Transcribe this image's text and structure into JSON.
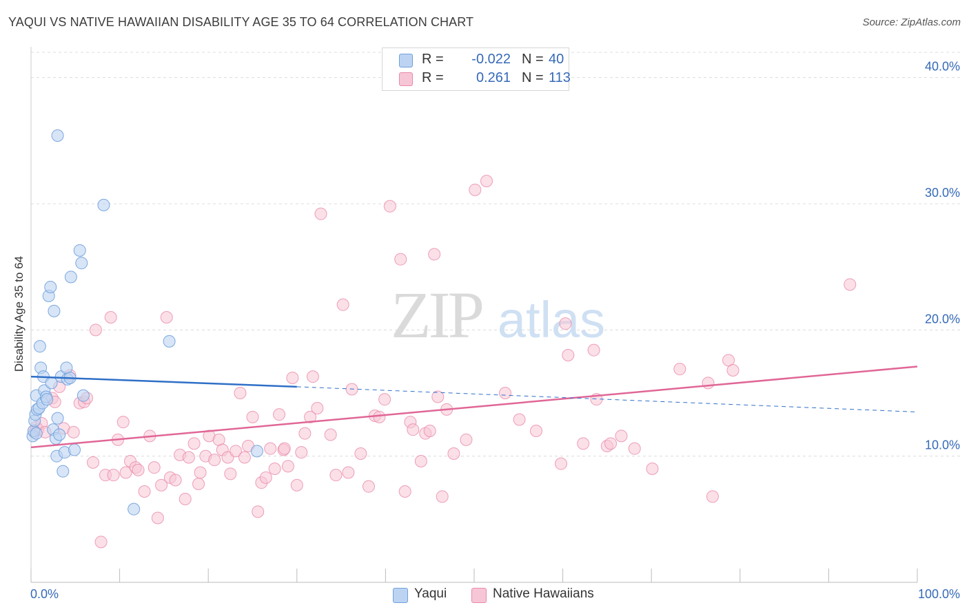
{
  "title": "YAQUI VS NATIVE HAWAIIAN DISABILITY AGE 35 TO 64 CORRELATION CHART",
  "source": "Source: ZipAtlas.com",
  "watermark": {
    "zip": "ZIP",
    "atlas": "atlas"
  },
  "legend": {
    "rows": [
      {
        "r_label": "R =",
        "r_value": "-0.022",
        "n_label": "N =",
        "n_value": "40"
      },
      {
        "r_label": "R =",
        "r_value": "0.261",
        "n_label": "N =",
        "n_value": "113"
      }
    ]
  },
  "bottom_legend": {
    "yaqui": "Yaqui",
    "hawaiian": "Native Hawaiians"
  },
  "colors": {
    "yaqui_fill": "#bcd4f2",
    "yaqui_stroke": "#6f9fdb",
    "yaqui_line": "#2e6fc7",
    "hawaiian_fill": "#f7c6d6",
    "hawaiian_stroke": "#e888a8",
    "hawaiian_line": "#e06696",
    "axis_text": "#3569b8",
    "grid": "#dcdcdc"
  },
  "chart_data": {
    "type": "scatter",
    "title": "YAQUI VS NATIVE HAWAIIAN DISABILITY AGE 35 TO 64 CORRELATION CHART",
    "xlabel": "",
    "ylabel": "Disability Age 35 to 64",
    "xlim": [
      0,
      100
    ],
    "ylim": [
      0,
      42
    ],
    "x_tick_labels": [
      "0.0%",
      "100.0%"
    ],
    "y_ticks": [
      10,
      20,
      30,
      40
    ],
    "y_tick_labels": [
      "10.0%",
      "20.0%",
      "30.0%",
      "40.0%"
    ],
    "series": [
      {
        "name": "Yaqui",
        "r": -0.022,
        "n": 40,
        "trend": {
          "x": [
            0,
            30
          ],
          "y": [
            16.3,
            15.5
          ],
          "dashed_to": [
            100,
            13.5
          ]
        },
        "points": [
          [
            0.2,
            11.6
          ],
          [
            0.3,
            12.0
          ],
          [
            0.4,
            12.8
          ],
          [
            0.5,
            13.3
          ],
          [
            0.6,
            14.8
          ],
          [
            0.7,
            13.7
          ],
          [
            0.9,
            13.8
          ],
          [
            1.0,
            18.7
          ],
          [
            1.1,
            17.0
          ],
          [
            1.3,
            14.2
          ],
          [
            1.4,
            16.3
          ],
          [
            1.5,
            15.2
          ],
          [
            1.7,
            14.7
          ],
          [
            1.8,
            14.5
          ],
          [
            2.0,
            22.7
          ],
          [
            2.2,
            23.4
          ],
          [
            2.3,
            15.8
          ],
          [
            2.5,
            12.1
          ],
          [
            2.6,
            21.5
          ],
          [
            2.8,
            11.4
          ],
          [
            2.9,
            10.0
          ],
          [
            3.0,
            13.0
          ],
          [
            3.2,
            11.7
          ],
          [
            3.4,
            16.3
          ],
          [
            3.6,
            8.8
          ],
          [
            3.8,
            10.3
          ],
          [
            4.0,
            17.0
          ],
          [
            4.1,
            16.1
          ],
          [
            4.4,
            16.2
          ],
          [
            4.5,
            24.2
          ],
          [
            4.9,
            10.5
          ],
          [
            5.5,
            26.3
          ],
          [
            5.7,
            25.3
          ],
          [
            5.9,
            14.8
          ],
          [
            8.2,
            29.9
          ],
          [
            11.6,
            5.8
          ],
          [
            15.6,
            19.1
          ],
          [
            25.5,
            10.4
          ],
          [
            0.6,
            11.8
          ],
          [
            3.0,
            35.4
          ]
        ]
      },
      {
        "name": "Native Hawaiians",
        "r": 0.261,
        "n": 113,
        "trend": {
          "x": [
            0,
            100
          ],
          "y": [
            10.7,
            17.1
          ]
        },
        "points": [
          [
            0.4,
            11.9
          ],
          [
            0.6,
            12.3
          ],
          [
            0.8,
            12.1
          ],
          [
            1.2,
            12.6
          ],
          [
            1.6,
            11.9
          ],
          [
            2.4,
            14.6
          ],
          [
            2.7,
            14.3
          ],
          [
            3.2,
            15.5
          ],
          [
            3.7,
            12.2
          ],
          [
            4.4,
            16.4
          ],
          [
            4.8,
            11.9
          ],
          [
            5.5,
            14.2
          ],
          [
            6.0,
            14.3
          ],
          [
            6.3,
            14.6
          ],
          [
            7.0,
            9.5
          ],
          [
            7.3,
            20.0
          ],
          [
            7.9,
            3.2
          ],
          [
            8.4,
            8.5
          ],
          [
            9.0,
            21.0
          ],
          [
            9.3,
            8.5
          ],
          [
            9.8,
            11.3
          ],
          [
            10.4,
            12.7
          ],
          [
            10.7,
            8.7
          ],
          [
            11.2,
            9.6
          ],
          [
            11.8,
            9.1
          ],
          [
            12.1,
            8.9
          ],
          [
            12.8,
            7.2
          ],
          [
            13.4,
            11.6
          ],
          [
            13.9,
            9.1
          ],
          [
            14.3,
            5.1
          ],
          [
            14.7,
            7.7
          ],
          [
            15.3,
            21.0
          ],
          [
            15.7,
            8.3
          ],
          [
            16.3,
            8.1
          ],
          [
            16.8,
            10.1
          ],
          [
            17.4,
            6.6
          ],
          [
            17.8,
            9.9
          ],
          [
            18.4,
            11.0
          ],
          [
            18.9,
            7.8
          ],
          [
            19.1,
            8.7
          ],
          [
            19.7,
            10.0
          ],
          [
            20.1,
            11.6
          ],
          [
            20.7,
            9.7
          ],
          [
            21.2,
            11.3
          ],
          [
            21.6,
            10.5
          ],
          [
            22.2,
            9.9
          ],
          [
            22.5,
            8.6
          ],
          [
            23.1,
            10.4
          ],
          [
            23.6,
            15.0
          ],
          [
            24.1,
            9.9
          ],
          [
            24.5,
            10.8
          ],
          [
            25.0,
            13.1
          ],
          [
            25.6,
            5.6
          ],
          [
            26.0,
            7.9
          ],
          [
            26.5,
            8.3
          ],
          [
            27.0,
            10.6
          ],
          [
            27.5,
            9.0
          ],
          [
            28.0,
            13.3
          ],
          [
            28.5,
            10.5
          ],
          [
            29.0,
            9.2
          ],
          [
            29.5,
            16.2
          ],
          [
            30.0,
            7.7
          ],
          [
            30.5,
            10.3
          ],
          [
            30.9,
            11.8
          ],
          [
            31.5,
            13.1
          ],
          [
            31.8,
            16.3
          ],
          [
            32.3,
            13.8
          ],
          [
            32.7,
            29.2
          ],
          [
            33.8,
            11.7
          ],
          [
            34.4,
            8.5
          ],
          [
            35.2,
            22.0
          ],
          [
            35.8,
            8.7
          ],
          [
            36.2,
            15.3
          ],
          [
            37.2,
            10.2
          ],
          [
            38.1,
            7.6
          ],
          [
            38.8,
            13.2
          ],
          [
            39.3,
            13.1
          ],
          [
            39.9,
            14.5
          ],
          [
            40.5,
            29.8
          ],
          [
            41.7,
            25.6
          ],
          [
            42.2,
            7.2
          ],
          [
            42.8,
            12.7
          ],
          [
            43.1,
            12.1
          ],
          [
            44.0,
            9.6
          ],
          [
            44.5,
            11.8
          ],
          [
            45.0,
            12.0
          ],
          [
            45.5,
            26.0
          ],
          [
            45.9,
            14.7
          ],
          [
            46.4,
            6.8
          ],
          [
            46.9,
            13.7
          ],
          [
            47.7,
            10.2
          ],
          [
            49.1,
            11.3
          ],
          [
            50.1,
            31.1
          ],
          [
            51.4,
            31.8
          ],
          [
            53.5,
            15.0
          ],
          [
            55.1,
            12.9
          ],
          [
            57.0,
            12.0
          ],
          [
            59.8,
            9.4
          ],
          [
            60.3,
            20.5
          ],
          [
            60.6,
            18.0
          ],
          [
            62.3,
            11.0
          ],
          [
            63.5,
            18.4
          ],
          [
            63.8,
            14.5
          ],
          [
            65.0,
            10.8
          ],
          [
            65.4,
            11.0
          ],
          [
            66.6,
            11.6
          ],
          [
            68.1,
            10.6
          ],
          [
            70.1,
            9.0
          ],
          [
            73.2,
            16.9
          ],
          [
            76.4,
            15.8
          ],
          [
            76.9,
            6.8
          ],
          [
            78.7,
            17.6
          ],
          [
            79.2,
            16.8
          ],
          [
            92.4,
            23.6
          ],
          [
            28.6,
            10.6
          ]
        ]
      }
    ]
  }
}
